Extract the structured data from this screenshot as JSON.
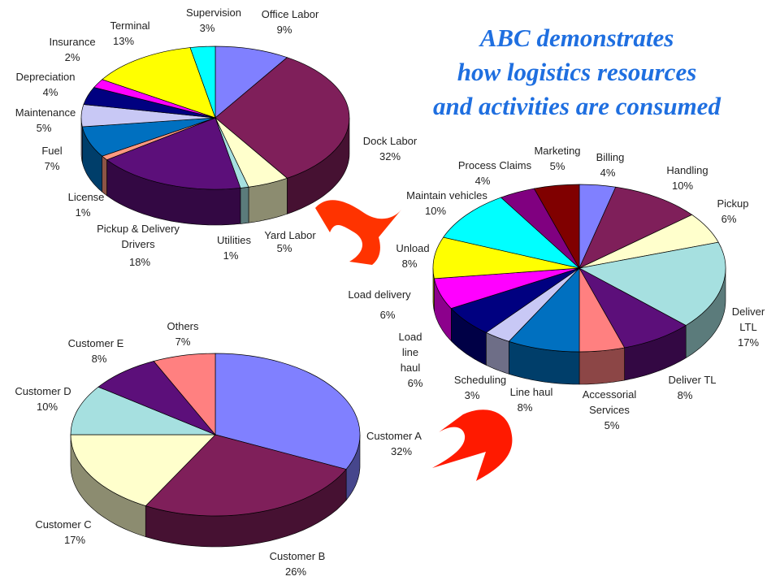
{
  "title": {
    "line1": "ABC demonstrates",
    "line2": "how logistics resources",
    "line3": "and activities are consumed"
  },
  "colors": {
    "title": "#1f6fe0",
    "arrow_upper": "#ff3300",
    "arrow_lower": "#ff1a00"
  },
  "chart_data": [
    {
      "type": "pie",
      "style": "3d",
      "name": "resources",
      "slices": [
        {
          "label": "Office Labor",
          "value": 9,
          "pct": "9%",
          "color": "#8080ff"
        },
        {
          "label": "Dock Labor",
          "value": 32,
          "pct": "32%",
          "color": "#7f1f5a"
        },
        {
          "label": "Yard Labor",
          "value": 5,
          "pct": "5%",
          "color": "#ffffcc"
        },
        {
          "label": "Utilities",
          "value": 1,
          "pct": "1%",
          "color": "#a6e0e0"
        },
        {
          "label": "Pickup & Delivery Drivers",
          "value": 18,
          "pct": "18%",
          "color": "#5c0f7a"
        },
        {
          "label": "License",
          "value": 1,
          "pct": "1%",
          "color": "#ff9980"
        },
        {
          "label": "Fuel",
          "value": 7,
          "pct": "7%",
          "color": "#0070c0"
        },
        {
          "label": "Maintenance",
          "value": 5,
          "pct": "5%",
          "color": "#c8c8f5"
        },
        {
          "label": "Depreciation",
          "value": 4,
          "pct": "4%",
          "color": "#000080"
        },
        {
          "label": "Insurance",
          "value": 2,
          "pct": "2%",
          "color": "#ff00ff"
        },
        {
          "label": "Terminal",
          "value": 13,
          "pct": "13%",
          "color": "#ffff00"
        },
        {
          "label": "Supervision",
          "value": 3,
          "pct": "3%",
          "color": "#00ffff"
        }
      ]
    },
    {
      "type": "pie",
      "style": "3d",
      "name": "activities",
      "slices": [
        {
          "label": "Billing",
          "value": 4,
          "pct": "4%",
          "color": "#8080ff"
        },
        {
          "label": "Handling",
          "value": 10,
          "pct": "10%",
          "color": "#7f1f5a"
        },
        {
          "label": "Pickup",
          "value": 6,
          "pct": "6%",
          "color": "#ffffcc"
        },
        {
          "label": "Deliver LTL",
          "value": 17,
          "pct": "17%",
          "color": "#a6e0e0"
        },
        {
          "label": "Deliver TL",
          "value": 8,
          "pct": "8%",
          "color": "#5c0f7a"
        },
        {
          "label": "Accessorial Services",
          "value": 5,
          "pct": "5%",
          "color": "#ff8080"
        },
        {
          "label": "Line haul",
          "value": 8,
          "pct": "8%",
          "color": "#0070c0"
        },
        {
          "label": "Scheduling",
          "value": 3,
          "pct": "3%",
          "color": "#c8c8f5"
        },
        {
          "label": "Load line haul",
          "value": 6,
          "pct": "6%",
          "color": "#000080"
        },
        {
          "label": "Load delivery",
          "value": 6,
          "pct": "6%",
          "color": "#ff00ff"
        },
        {
          "label": "Unload",
          "value": 8,
          "pct": "8%",
          "color": "#ffff00"
        },
        {
          "label": "Maintain vehicles",
          "value": 10,
          "pct": "10%",
          "color": "#00ffff"
        },
        {
          "label": "Process Claims",
          "value": 4,
          "pct": "4%",
          "color": "#800080"
        },
        {
          "label": "Marketing",
          "value": 5,
          "pct": "5%",
          "color": "#800000"
        }
      ]
    },
    {
      "type": "pie",
      "style": "3d",
      "name": "customers",
      "slices": [
        {
          "label": "Customer A",
          "value": 32,
          "pct": "32%",
          "color": "#8080ff"
        },
        {
          "label": "Customer B",
          "value": 26,
          "pct": "26%",
          "color": "#7f1f5a"
        },
        {
          "label": "Customer C",
          "value": 17,
          "pct": "17%",
          "color": "#ffffcc"
        },
        {
          "label": "Customer D",
          "value": 10,
          "pct": "10%",
          "color": "#a6e0e0"
        },
        {
          "label": "Customer E",
          "value": 8,
          "pct": "8%",
          "color": "#5c0f7a"
        },
        {
          "label": "Others",
          "value": 7,
          "pct": "7%",
          "color": "#ff8080"
        }
      ]
    }
  ]
}
